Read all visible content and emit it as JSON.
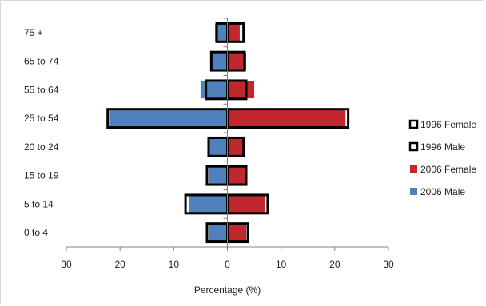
{
  "chart_data": {
    "type": "bar",
    "orientation": "horizontal",
    "layout": "population-pyramid",
    "categories": [
      "0 to 4",
      "5 to 14",
      "15 to 19",
      "20 to 24",
      "25 to 54",
      "55 to 64",
      "65 to 74",
      "75 +"
    ],
    "series": [
      {
        "name": "1996 Female",
        "side": "right",
        "style": "outline",
        "color": "#000000",
        "values": [
          3.8,
          7.5,
          3.5,
          3.0,
          22.5,
          3.5,
          3.2,
          3.0
        ]
      },
      {
        "name": "1996 Male",
        "side": "left",
        "style": "outline",
        "color": "#000000",
        "values": [
          3.8,
          7.8,
          3.8,
          3.5,
          22.3,
          4.0,
          3.0,
          2.0
        ]
      },
      {
        "name": "2006 Female",
        "side": "right",
        "style": "fill",
        "color": "#c0282d",
        "values": [
          3.5,
          7.0,
          3.3,
          3.2,
          22.0,
          5.0,
          3.5,
          2.3
        ]
      },
      {
        "name": "2006 Male",
        "side": "left",
        "style": "fill",
        "color": "#4f81bd",
        "values": [
          3.5,
          7.2,
          3.5,
          3.5,
          22.0,
          5.0,
          3.0,
          2.3
        ]
      }
    ],
    "xlabel": "Percentage (%)",
    "ylabel": "",
    "title": "",
    "xlim": [
      -30,
      30
    ],
    "xticks": [
      -30,
      -20,
      -10,
      0,
      10,
      20,
      30
    ],
    "xtick_labels": [
      "30",
      "20",
      "10",
      "0",
      "10",
      "20",
      "30"
    ],
    "legend_position": "right",
    "grid": false
  }
}
